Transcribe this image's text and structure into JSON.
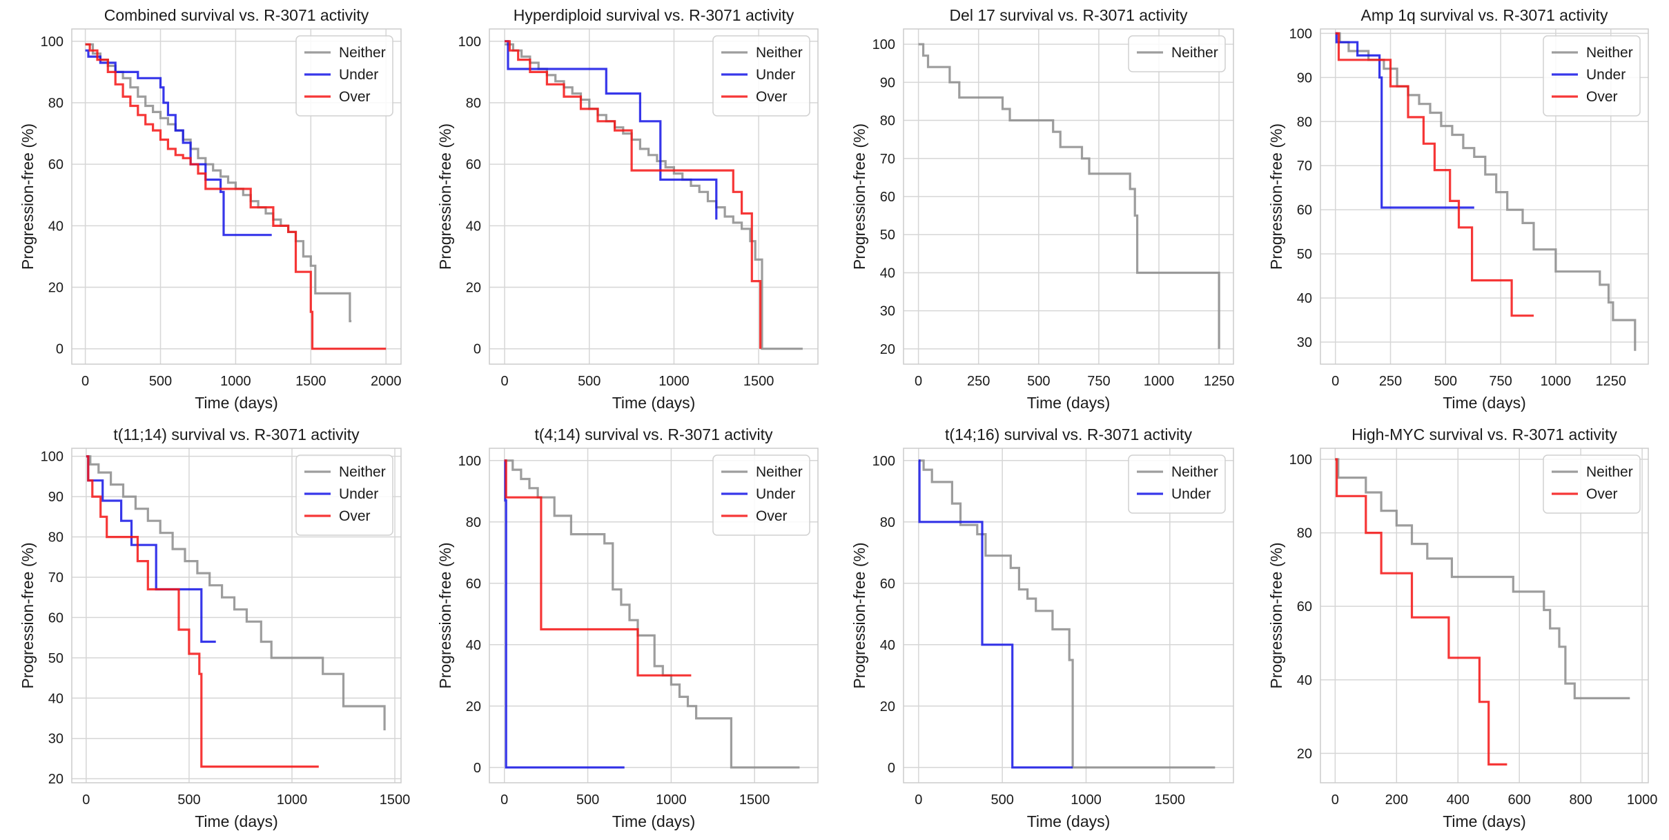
{
  "colors": {
    "neither": "#8c8c8c",
    "under": "#1414e6",
    "over": "#f51414"
  },
  "chart_data": [
    {
      "type": "line",
      "title": "Combined survival vs. R-3071 activity",
      "xlabel": "Time (days)",
      "ylabel": "Progression-free (%)",
      "xlim": [
        -90,
        2100
      ],
      "ylim": [
        -5,
        104
      ],
      "xticks": [
        0,
        500,
        1000,
        1500,
        2000
      ],
      "yticks": [
        0,
        20,
        40,
        60,
        80,
        100
      ],
      "legend": "top-right",
      "series": [
        {
          "name": "Neither",
          "color_key": "neither",
          "x": [
            0,
            50,
            100,
            150,
            200,
            250,
            300,
            350,
            400,
            450,
            500,
            550,
            600,
            650,
            700,
            750,
            800,
            850,
            900,
            950,
            1000,
            1050,
            1100,
            1150,
            1200,
            1250,
            1300,
            1350,
            1400,
            1450,
            1500,
            1530,
            1760,
            1760,
            1770
          ],
          "y": [
            99,
            96,
            94,
            92,
            90,
            88,
            85,
            82,
            79,
            77,
            75,
            73,
            71,
            68,
            65,
            62,
            60,
            58,
            56,
            54,
            52,
            50,
            48,
            46,
            44,
            42,
            40,
            38,
            35,
            30,
            27,
            18,
            18,
            9,
            9
          ]
        },
        {
          "name": "Under",
          "color_key": "under",
          "x": [
            0,
            20,
            100,
            200,
            350,
            500,
            520,
            550,
            600,
            650,
            700,
            800,
            900,
            920,
            1240
          ],
          "y": [
            97,
            95,
            93,
            90,
            88,
            85,
            80,
            76,
            71,
            67,
            60,
            55,
            51,
            37,
            37
          ]
        },
        {
          "name": "Over",
          "color_key": "over",
          "x": [
            0,
            30,
            80,
            150,
            200,
            250,
            300,
            350,
            400,
            450,
            500,
            550,
            600,
            650,
            700,
            750,
            800,
            900,
            1100,
            1250,
            1350,
            1400,
            1500,
            1510,
            1520,
            2000
          ],
          "y": [
            99,
            97,
            94,
            90,
            86,
            82,
            79,
            76,
            73,
            71,
            68,
            65,
            63,
            62,
            60,
            57,
            52,
            52,
            46,
            40,
            38,
            25,
            12,
            0,
            0,
            0
          ]
        }
      ]
    },
    {
      "type": "line",
      "title": "Hyperdiploid survival vs. R-3071 activity",
      "xlabel": "Time (days)",
      "ylabel": "Progression-free (%)",
      "xlim": [
        -90,
        1850
      ],
      "ylim": [
        -5,
        104
      ],
      "xticks": [
        0,
        500,
        1000,
        1500
      ],
      "yticks": [
        0,
        20,
        40,
        60,
        80,
        100
      ],
      "legend": "top-right",
      "series": [
        {
          "name": "Neither",
          "color_key": "neither",
          "x": [
            0,
            50,
            100,
            150,
            200,
            250,
            300,
            350,
            400,
            450,
            500,
            550,
            600,
            650,
            700,
            750,
            800,
            850,
            900,
            950,
            1000,
            1050,
            1100,
            1150,
            1200,
            1250,
            1300,
            1350,
            1400,
            1450,
            1480,
            1520,
            1760
          ],
          "y": [
            99,
            97,
            95,
            93,
            91,
            89,
            87,
            85,
            83,
            81,
            78,
            76,
            74,
            72,
            70,
            68,
            65,
            63,
            61,
            59,
            57,
            55,
            53,
            51,
            48,
            46,
            43,
            41,
            39,
            35,
            29,
            0,
            0
          ]
        },
        {
          "name": "Under",
          "color_key": "under",
          "x": [
            0,
            20,
            500,
            600,
            800,
            920,
            1250
          ],
          "y": [
            100,
            91,
            91,
            83,
            74,
            55,
            42
          ]
        },
        {
          "name": "Over",
          "color_key": "over",
          "x": [
            0,
            30,
            80,
            150,
            250,
            350,
            450,
            550,
            650,
            750,
            1320,
            1350,
            1400,
            1460,
            1510
          ],
          "y": [
            100,
            97,
            94,
            90,
            86,
            82,
            78,
            74,
            71,
            58,
            58,
            51,
            44,
            22,
            0
          ]
        }
      ]
    },
    {
      "type": "line",
      "title": "Del 17 survival vs. R-3071 activity",
      "xlabel": "Time (days)",
      "ylabel": "Progression-free (%)",
      "xlim": [
        -62,
        1310
      ],
      "ylim": [
        16,
        104
      ],
      "xticks": [
        0,
        250,
        500,
        750,
        1000,
        1250
      ],
      "yticks": [
        20,
        30,
        40,
        50,
        60,
        70,
        80,
        90,
        100
      ],
      "legend": "top-right",
      "series": [
        {
          "name": "Neither",
          "color_key": "neither",
          "x": [
            0,
            20,
            40,
            130,
            170,
            350,
            380,
            560,
            590,
            680,
            710,
            880,
            900,
            910,
            1250
          ],
          "y": [
            100,
            97,
            94,
            90,
            86,
            83,
            80,
            77,
            73,
            70,
            66,
            62,
            55,
            40,
            20
          ]
        }
      ]
    },
    {
      "type": "line",
      "title": "Amp 1q survival vs. R-3071 activity",
      "xlabel": "Time (days)",
      "ylabel": "Progression-free (%)",
      "xlim": [
        -68,
        1420
      ],
      "ylim": [
        25,
        101
      ],
      "xticks": [
        0,
        250,
        500,
        750,
        1000,
        1250
      ],
      "yticks": [
        30,
        40,
        50,
        60,
        70,
        80,
        90,
        100
      ],
      "legend": "top-right",
      "series": [
        {
          "name": "Neither",
          "color_key": "neither",
          "x": [
            0,
            20,
            60,
            150,
            220,
            280,
            330,
            380,
            430,
            480,
            530,
            580,
            630,
            680,
            730,
            780,
            850,
            900,
            1000,
            1200,
            1240,
            1260,
            1360
          ],
          "y": [
            100,
            98,
            96,
            94,
            92,
            88,
            86,
            84,
            82,
            79,
            77,
            74,
            72,
            68,
            64,
            60,
            57,
            51,
            46,
            43,
            39,
            35,
            28
          ]
        },
        {
          "name": "Under",
          "color_key": "under",
          "x": [
            0,
            5,
            100,
            200,
            210,
            630
          ],
          "y": [
            100,
            98,
            95,
            90,
            60.5,
            60.5
          ]
        },
        {
          "name": "Over",
          "color_key": "over",
          "x": [
            0,
            15,
            200,
            250,
            330,
            400,
            450,
            520,
            560,
            620,
            800,
            900
          ],
          "y": [
            100,
            94,
            94,
            88,
            81,
            75,
            69,
            62,
            56,
            44,
            36,
            36
          ]
        }
      ]
    },
    {
      "type": "line",
      "title": "t(11;14) survival vs. R-3071 activity",
      "xlabel": "Time (days)",
      "ylabel": "Progression-free (%)",
      "xlim": [
        -70,
        1530
      ],
      "ylim": [
        19,
        102
      ],
      "xticks": [
        0,
        500,
        1000,
        1500
      ],
      "yticks": [
        20,
        30,
        40,
        50,
        60,
        70,
        80,
        90,
        100
      ],
      "legend": "top-right",
      "series": [
        {
          "name": "Neither",
          "color_key": "neither",
          "x": [
            0,
            20,
            60,
            120,
            180,
            240,
            300,
            360,
            420,
            480,
            540,
            600,
            660,
            720,
            780,
            850,
            900,
            1000,
            1150,
            1250,
            1450
          ],
          "y": [
            100,
            98,
            96,
            93,
            90,
            87,
            84,
            81,
            77,
            74,
            71,
            68,
            65,
            62,
            59,
            54,
            50,
            50,
            46,
            38,
            32
          ]
        },
        {
          "name": "Under",
          "color_key": "under",
          "x": [
            0,
            10,
            80,
            170,
            220,
            340,
            550,
            560,
            630
          ],
          "y": [
            100,
            94,
            89,
            84,
            78,
            67,
            67,
            54,
            54
          ]
        },
        {
          "name": "Over",
          "color_key": "over",
          "x": [
            0,
            10,
            30,
            70,
            100,
            250,
            300,
            350,
            450,
            500,
            550,
            560,
            1130
          ],
          "y": [
            100,
            94,
            90,
            85,
            80,
            74,
            67,
            67,
            57,
            51,
            46,
            23,
            23
          ]
        }
      ]
    },
    {
      "type": "line",
      "title": "t(4;14) survival vs. R-3071 activity",
      "xlabel": "Time (days)",
      "ylabel": "Progression-free (%)",
      "xlim": [
        -90,
        1880
      ],
      "ylim": [
        -5,
        104
      ],
      "xticks": [
        0,
        500,
        1000,
        1500
      ],
      "yticks": [
        0,
        20,
        40,
        60,
        80,
        100
      ],
      "legend": "top-right",
      "series": [
        {
          "name": "Neither",
          "color_key": "neither",
          "x": [
            0,
            50,
            100,
            150,
            200,
            300,
            400,
            600,
            650,
            700,
            750,
            800,
            900,
            950,
            1000,
            1050,
            1100,
            1150,
            1350,
            1360,
            1770
          ],
          "y": [
            100,
            97,
            94,
            91,
            88,
            82,
            76,
            73,
            58,
            53,
            48,
            43,
            33,
            30,
            27,
            23,
            20,
            16,
            16,
            0,
            0
          ]
        },
        {
          "name": "Under",
          "color_key": "under",
          "x": [
            0,
            5,
            10,
            720
          ],
          "y": [
            100,
            87,
            0,
            0
          ]
        },
        {
          "name": "Over",
          "color_key": "over",
          "x": [
            0,
            10,
            200,
            220,
            700,
            800,
            1120
          ],
          "y": [
            100,
            88,
            88,
            45,
            45,
            30,
            30
          ]
        }
      ]
    },
    {
      "type": "line",
      "title": "t(14;16) survival vs. R-3071 activity",
      "xlabel": "Time (days)",
      "ylabel": "Progression-free (%)",
      "xlim": [
        -90,
        1880
      ],
      "ylim": [
        -5,
        104
      ],
      "xticks": [
        0,
        500,
        1000,
        1500
      ],
      "yticks": [
        0,
        20,
        40,
        60,
        80,
        100
      ],
      "legend": "top-right",
      "series": [
        {
          "name": "Neither",
          "color_key": "neither",
          "x": [
            0,
            30,
            80,
            200,
            250,
            350,
            400,
            550,
            600,
            650,
            700,
            800,
            900,
            920,
            1770
          ],
          "y": [
            100,
            97,
            93,
            86,
            79,
            76,
            69,
            65,
            58,
            55,
            51,
            45,
            35,
            0,
            0
          ]
        },
        {
          "name": "Under",
          "color_key": "under",
          "x": [
            0,
            5,
            370,
            380,
            550,
            560,
            920
          ],
          "y": [
            100,
            80,
            80,
            40,
            40,
            0,
            0
          ]
        }
      ]
    },
    {
      "type": "line",
      "title": "High-MYC survival vs. R-3071 activity",
      "xlabel": "Time (days)",
      "ylabel": "Progression-free (%)",
      "xlim": [
        -48,
        1020
      ],
      "ylim": [
        12,
        103
      ],
      "xticks": [
        0,
        200,
        400,
        600,
        800,
        1000
      ],
      "yticks": [
        20,
        40,
        60,
        80,
        100
      ],
      "legend": "top-right",
      "series": [
        {
          "name": "Neither",
          "color_key": "neither",
          "x": [
            0,
            10,
            100,
            150,
            200,
            250,
            300,
            380,
            480,
            580,
            680,
            700,
            730,
            750,
            780,
            960
          ],
          "y": [
            100,
            95,
            91,
            86,
            82,
            77,
            73,
            68,
            68,
            64,
            59,
            54,
            49,
            39,
            35,
            35
          ]
        },
        {
          "name": "Over",
          "color_key": "over",
          "x": [
            0,
            5,
            100,
            150,
            250,
            370,
            470,
            500,
            560
          ],
          "y": [
            100,
            90,
            80,
            69,
            57,
            46,
            34,
            17,
            17
          ]
        }
      ]
    }
  ]
}
